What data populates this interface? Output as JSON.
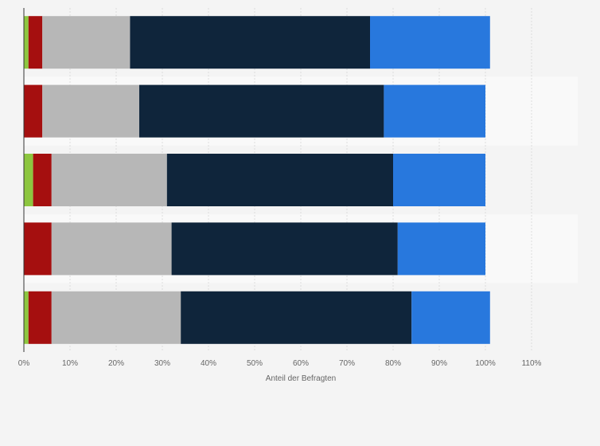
{
  "chart_data": {
    "type": "bar",
    "orientation": "horizontal",
    "stacked": true,
    "categories": [
      "",
      "",
      "",
      "",
      ""
    ],
    "series": [
      {
        "color": "#8dc63f",
        "values": [
          1,
          0,
          2,
          0,
          1
        ]
      },
      {
        "color": "#a50f0f",
        "values": [
          3,
          4,
          4,
          6,
          5
        ]
      },
      {
        "color": "#b7b7b7",
        "values": [
          19,
          21,
          25,
          26,
          28
        ]
      },
      {
        "color": "#0f253b",
        "values": [
          52,
          53,
          49,
          49,
          50
        ]
      },
      {
        "color": "#2878dd",
        "values": [
          26,
          22,
          20,
          19,
          17
        ]
      }
    ],
    "xlim": [
      0,
      120
    ],
    "xticks": [
      0,
      10,
      20,
      30,
      40,
      50,
      60,
      70,
      80,
      90,
      100,
      110
    ],
    "tick_labels": [
      "0%",
      "10%",
      "20%",
      "30%",
      "40%",
      "50%",
      "60%",
      "70%",
      "80%",
      "90%",
      "100%",
      "110%"
    ],
    "xlabel": "Anteil der Befragten",
    "grid": true,
    "colors": {
      "background": "#f4f4f4",
      "band_light": "#f9f9f9",
      "grid": "#dddddd",
      "axis": "#333333",
      "text": "#666666"
    }
  }
}
